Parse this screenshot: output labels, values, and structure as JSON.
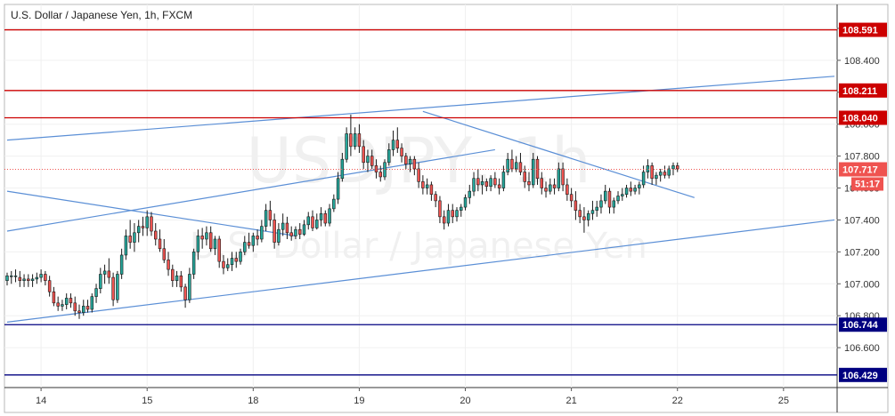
{
  "header": {
    "title": "U.S. Dollar / Japanese Yen, 1h, FXCM"
  },
  "watermark": {
    "symbol": "USDJPY, 1h",
    "description": "U.S. Dollar / Japanese Yen"
  },
  "colors": {
    "up": "#26a69a",
    "down": "#ef5350",
    "resistance": "#cc0000",
    "support": "#000080",
    "trendline": "#5b8fd6",
    "price_line": "#ef5350",
    "countdown": "#ef5350"
  },
  "chart_data": {
    "type": "candlestick",
    "instrument": "U.S. Dollar / Japanese Yen",
    "timeframe": "1h",
    "source": "FXCM",
    "ylim": [
      106.35,
      108.75
    ],
    "xlim": [
      0,
      195
    ],
    "y_ticks": [
      "106.600",
      "106.800",
      "107.000",
      "107.200",
      "107.400",
      "107.600",
      "107.800",
      "108.000",
      "108.200",
      "108.400",
      "108.600"
    ],
    "x_ticks": [
      {
        "label": "14",
        "x": 8
      },
      {
        "label": "15",
        "x": 33
      },
      {
        "label": "18",
        "x": 58
      },
      {
        "label": "19",
        "x": 83
      },
      {
        "label": "20",
        "x": 108
      },
      {
        "label": "21",
        "x": 133
      },
      {
        "label": "22",
        "x": 158
      },
      {
        "label": "25",
        "x": 183
      }
    ],
    "candles": [
      [
        107.02,
        107.07,
        106.99,
        107.05
      ],
      [
        107.05,
        107.08,
        107.0,
        107.05
      ],
      [
        107.05,
        107.09,
        107.01,
        107.05
      ],
      [
        107.04,
        107.08,
        106.98,
        107.02
      ],
      [
        107.02,
        107.06,
        106.98,
        107.03
      ],
      [
        107.03,
        107.06,
        106.98,
        107.02
      ],
      [
        107.02,
        107.06,
        106.98,
        107.03
      ],
      [
        107.03,
        107.07,
        107.0,
        107.04
      ],
      [
        107.04,
        107.09,
        107.01,
        107.06
      ],
      [
        107.06,
        107.08,
        106.99,
        107.02
      ],
      [
        107.02,
        107.05,
        106.92,
        106.95
      ],
      [
        106.95,
        106.98,
        106.86,
        106.88
      ],
      [
        106.88,
        106.92,
        106.83,
        106.86
      ],
      [
        106.86,
        106.9,
        106.83,
        106.87
      ],
      [
        106.87,
        106.94,
        106.84,
        106.91
      ],
      [
        106.91,
        106.94,
        106.85,
        106.88
      ],
      [
        106.88,
        106.92,
        106.8,
        106.83
      ],
      [
        106.83,
        106.87,
        106.78,
        106.82
      ],
      [
        106.82,
        106.9,
        106.8,
        106.86
      ],
      [
        106.86,
        106.9,
        106.82,
        106.84
      ],
      [
        106.84,
        106.94,
        106.82,
        106.92
      ],
      [
        106.92,
        107.0,
        106.88,
        106.97
      ],
      [
        106.97,
        107.1,
        106.94,
        107.06
      ],
      [
        107.06,
        107.12,
        107.0,
        107.08
      ],
      [
        107.08,
        107.16,
        107.0,
        107.04
      ],
      [
        107.04,
        107.07,
        106.86,
        106.9
      ],
      [
        106.9,
        107.08,
        106.88,
        107.06
      ],
      [
        107.06,
        107.22,
        107.03,
        107.18
      ],
      [
        107.18,
        107.34,
        107.15,
        107.3
      ],
      [
        107.3,
        107.4,
        107.22,
        107.26
      ],
      [
        107.26,
        107.38,
        107.2,
        107.32
      ],
      [
        107.32,
        107.4,
        107.26,
        107.36
      ],
      [
        107.36,
        107.42,
        107.3,
        107.35
      ],
      [
        107.35,
        107.46,
        107.3,
        107.42
      ],
      [
        107.42,
        107.45,
        107.3,
        107.33
      ],
      [
        107.33,
        107.38,
        107.24,
        107.28
      ],
      [
        107.28,
        107.34,
        107.2,
        107.22
      ],
      [
        107.22,
        107.28,
        107.13,
        107.15
      ],
      [
        107.15,
        107.2,
        107.05,
        107.09
      ],
      [
        107.09,
        107.12,
        106.98,
        107.02
      ],
      [
        107.02,
        107.08,
        106.98,
        107.05
      ],
      [
        107.05,
        107.08,
        106.95,
        106.98
      ],
      [
        106.98,
        107.0,
        106.85,
        106.9
      ],
      [
        106.9,
        107.1,
        106.88,
        107.06
      ],
      [
        107.06,
        107.22,
        107.03,
        107.2
      ],
      [
        107.2,
        107.34,
        107.15,
        107.3
      ],
      [
        107.3,
        107.35,
        107.22,
        107.28
      ],
      [
        107.28,
        107.36,
        107.24,
        107.32
      ],
      [
        107.32,
        107.36,
        107.2,
        107.22
      ],
      [
        107.22,
        107.3,
        107.18,
        107.28
      ],
      [
        107.28,
        107.3,
        107.1,
        107.14
      ],
      [
        107.14,
        107.18,
        107.06,
        107.1
      ],
      [
        107.1,
        107.16,
        107.08,
        107.12
      ],
      [
        107.12,
        107.2,
        107.08,
        107.16
      ],
      [
        107.16,
        107.2,
        107.1,
        107.14
      ],
      [
        107.14,
        107.22,
        107.12,
        107.2
      ],
      [
        107.2,
        107.3,
        107.18,
        107.26
      ],
      [
        107.26,
        107.32,
        107.22,
        107.24
      ],
      [
        107.24,
        107.32,
        107.2,
        107.3
      ],
      [
        107.3,
        107.34,
        107.24,
        107.28
      ],
      [
        107.28,
        107.4,
        107.26,
        107.36
      ],
      [
        107.36,
        107.5,
        107.33,
        107.46
      ],
      [
        107.46,
        107.52,
        107.36,
        107.4
      ],
      [
        107.4,
        107.44,
        107.22,
        107.26
      ],
      [
        107.26,
        107.38,
        107.24,
        107.34
      ],
      [
        107.34,
        107.44,
        107.3,
        107.38
      ],
      [
        107.38,
        107.42,
        107.28,
        107.32
      ],
      [
        107.32,
        107.36,
        107.27,
        107.3
      ],
      [
        107.3,
        107.36,
        107.28,
        107.34
      ],
      [
        107.34,
        107.38,
        107.28,
        107.31
      ],
      [
        107.31,
        107.4,
        107.3,
        107.37
      ],
      [
        107.37,
        107.45,
        107.34,
        107.42
      ],
      [
        107.42,
        107.46,
        107.33,
        107.35
      ],
      [
        107.35,
        107.44,
        107.34,
        107.4
      ],
      [
        107.4,
        107.48,
        107.36,
        107.44
      ],
      [
        107.44,
        107.46,
        107.36,
        107.38
      ],
      [
        107.38,
        107.5,
        107.36,
        107.47
      ],
      [
        107.47,
        107.56,
        107.45,
        107.53
      ],
      [
        107.53,
        107.7,
        107.5,
        107.66
      ],
      [
        107.66,
        107.82,
        107.64,
        107.78
      ],
      [
        107.78,
        107.98,
        107.76,
        107.94
      ],
      [
        107.94,
        108.06,
        107.8,
        107.86
      ],
      [
        107.86,
        107.98,
        107.84,
        107.94
      ],
      [
        107.94,
        108.0,
        107.82,
        107.86
      ],
      [
        107.86,
        107.9,
        107.72,
        107.76
      ],
      [
        107.76,
        107.84,
        107.7,
        107.8
      ],
      [
        107.8,
        107.84,
        107.72,
        107.74
      ],
      [
        107.74,
        107.78,
        107.66,
        107.7
      ],
      [
        107.7,
        107.74,
        107.64,
        107.67
      ],
      [
        107.67,
        107.78,
        107.65,
        107.76
      ],
      [
        107.76,
        107.88,
        107.74,
        107.84
      ],
      [
        107.84,
        107.96,
        107.8,
        107.9
      ],
      [
        107.9,
        107.98,
        107.82,
        107.85
      ],
      [
        107.85,
        107.88,
        107.76,
        107.8
      ],
      [
        107.8,
        107.82,
        107.72,
        107.75
      ],
      [
        107.75,
        107.8,
        107.7,
        107.78
      ],
      [
        107.78,
        107.8,
        107.68,
        107.72
      ],
      [
        107.72,
        107.76,
        107.6,
        107.64
      ],
      [
        107.64,
        107.68,
        107.56,
        107.6
      ],
      [
        107.6,
        107.66,
        107.56,
        107.62
      ],
      [
        107.62,
        107.64,
        107.52,
        107.56
      ],
      [
        107.56,
        107.58,
        107.48,
        107.52
      ],
      [
        107.52,
        107.55,
        107.38,
        107.42
      ],
      [
        107.42,
        107.46,
        107.34,
        107.38
      ],
      [
        107.38,
        107.5,
        107.36,
        107.46
      ],
      [
        107.46,
        107.5,
        107.38,
        107.42
      ],
      [
        107.42,
        107.48,
        107.39,
        107.46
      ],
      [
        107.46,
        107.5,
        107.42,
        107.48
      ],
      [
        107.48,
        107.56,
        107.46,
        107.54
      ],
      [
        107.54,
        107.62,
        107.5,
        107.58
      ],
      [
        107.58,
        107.7,
        107.55,
        107.66
      ],
      [
        107.66,
        107.72,
        107.58,
        107.62
      ],
      [
        107.62,
        107.68,
        107.56,
        107.64
      ],
      [
        107.64,
        107.66,
        107.58,
        107.61
      ],
      [
        107.61,
        107.68,
        107.58,
        107.66
      ],
      [
        107.66,
        107.7,
        107.6,
        107.62
      ],
      [
        107.62,
        107.66,
        107.56,
        107.6
      ],
      [
        107.6,
        107.74,
        107.58,
        107.7
      ],
      [
        107.7,
        107.82,
        107.68,
        107.78
      ],
      [
        107.78,
        107.84,
        107.7,
        107.72
      ],
      [
        107.72,
        107.8,
        107.7,
        107.76
      ],
      [
        107.76,
        107.82,
        107.68,
        107.7
      ],
      [
        107.7,
        107.74,
        107.6,
        107.64
      ],
      [
        107.64,
        107.7,
        107.58,
        107.62
      ],
      [
        107.62,
        107.82,
        107.6,
        107.78
      ],
      [
        107.78,
        107.8,
        107.62,
        107.66
      ],
      [
        107.66,
        107.7,
        107.56,
        107.6
      ],
      [
        107.6,
        107.64,
        107.54,
        107.58
      ],
      [
        107.58,
        107.66,
        107.56,
        107.62
      ],
      [
        107.62,
        107.66,
        107.56,
        107.6
      ],
      [
        107.6,
        107.76,
        107.58,
        107.72
      ],
      [
        107.72,
        107.76,
        107.58,
        107.62
      ],
      [
        107.62,
        107.66,
        107.52,
        107.56
      ],
      [
        107.56,
        107.6,
        107.48,
        107.52
      ],
      [
        107.52,
        107.58,
        107.4,
        107.46
      ],
      [
        107.46,
        107.5,
        107.38,
        107.42
      ],
      [
        107.42,
        107.48,
        107.32,
        107.4
      ],
      [
        107.4,
        107.46,
        107.36,
        107.44
      ],
      [
        107.44,
        107.52,
        107.4,
        107.46
      ],
      [
        107.46,
        107.52,
        107.42,
        107.48
      ],
      [
        107.48,
        107.56,
        107.44,
        107.52
      ],
      [
        107.52,
        107.62,
        107.5,
        107.58
      ],
      [
        107.58,
        107.6,
        107.44,
        107.48
      ],
      [
        107.48,
        107.54,
        107.44,
        107.52
      ],
      [
        107.52,
        107.58,
        107.5,
        107.55
      ],
      [
        107.55,
        107.6,
        107.52,
        107.56
      ],
      [
        107.56,
        107.62,
        107.54,
        107.6
      ],
      [
        107.6,
        107.64,
        107.55,
        107.58
      ],
      [
        107.58,
        107.62,
        107.56,
        107.6
      ],
      [
        107.6,
        107.64,
        107.56,
        107.62
      ],
      [
        107.62,
        107.74,
        107.6,
        107.7
      ],
      [
        107.7,
        107.78,
        107.66,
        107.74
      ],
      [
        107.74,
        107.76,
        107.62,
        107.66
      ],
      [
        107.66,
        107.7,
        107.62,
        107.68
      ],
      [
        107.68,
        107.72,
        107.64,
        107.7
      ],
      [
        107.7,
        107.74,
        107.66,
        107.68
      ],
      [
        107.68,
        107.74,
        107.66,
        107.72
      ],
      [
        107.72,
        107.76,
        107.68,
        107.74
      ],
      [
        107.74,
        107.76,
        107.7,
        107.72
      ]
    ],
    "horizontal_levels": [
      {
        "label": "108.591",
        "value": 108.591,
        "role": "resistance"
      },
      {
        "label": "108.211",
        "value": 108.211,
        "role": "resistance"
      },
      {
        "label": "108.040",
        "value": 108.04,
        "role": "resistance"
      },
      {
        "label": "106.744",
        "value": 106.744,
        "role": "support"
      },
      {
        "label": "106.429",
        "value": 106.429,
        "role": "support"
      }
    ],
    "trendlines": [
      {
        "x1": 0,
        "y1": 107.9,
        "x2": 195,
        "y2": 108.3
      },
      {
        "x1": 0,
        "y1": 107.33,
        "x2": 115,
        "y2": 107.84
      },
      {
        "x1": 0,
        "y1": 106.76,
        "x2": 195,
        "y2": 107.4
      },
      {
        "x1": 0,
        "y1": 107.58,
        "x2": 68,
        "y2": 107.3
      },
      {
        "x1": 98,
        "y1": 108.08,
        "x2": 162,
        "y2": 107.54
      }
    ],
    "last_price": {
      "value": 107.717,
      "label": "107.717",
      "countdown": "51:17"
    }
  }
}
